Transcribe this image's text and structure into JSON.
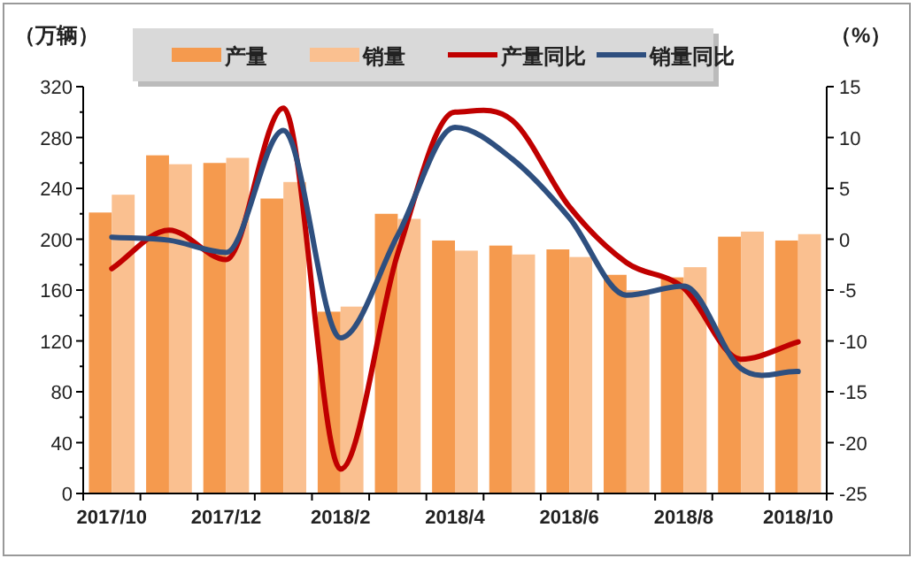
{
  "chart_data": {
    "type": "bar",
    "ylabel": "（万辆）",
    "y2label": "（%）",
    "categories": [
      "2017/10",
      null,
      "2017/12",
      null,
      "2018/2",
      null,
      "2018/4",
      null,
      "2018/6",
      null,
      "2018/8",
      null,
      "2018/10"
    ],
    "series": [
      {
        "name": "产量",
        "color": "#f59a4e",
        "values": [
          221,
          266,
          260,
          232,
          143,
          220,
          199,
          195,
          192,
          172,
          170,
          202,
          199
        ]
      },
      {
        "name": "销量",
        "color": "#fac090",
        "values": [
          235,
          259,
          264,
          245,
          147,
          216,
          191,
          188,
          186,
          160,
          178,
          206,
          204
        ]
      },
      {
        "name": "产量同比",
        "type": "line",
        "axis": "y2",
        "color": "#c00000",
        "values": [
          -2.9,
          0.9,
          -2,
          12.9,
          -22.6,
          -1.4,
          12.5,
          11.7,
          3.2,
          -2.3,
          -4.8,
          -11.8,
          -10.1
        ]
      },
      {
        "name": "销量同比",
        "type": "line",
        "axis": "y2",
        "color": "#2e4f7f",
        "values": [
          0.2,
          -0.1,
          -1.3,
          10.7,
          -9.7,
          0.4,
          11,
          7.9,
          2.1,
          -5.5,
          -4.6,
          -12.7,
          -13
        ]
      }
    ],
    "ylim": [
      0,
      320
    ],
    "yticks": [
      0,
      40,
      80,
      120,
      160,
      200,
      240,
      280,
      320
    ],
    "y2lim": [
      -25,
      15
    ],
    "y2ticks": [
      -25,
      -20,
      -15,
      -10,
      -5,
      0,
      5,
      10,
      15
    ],
    "legend": "top"
  }
}
